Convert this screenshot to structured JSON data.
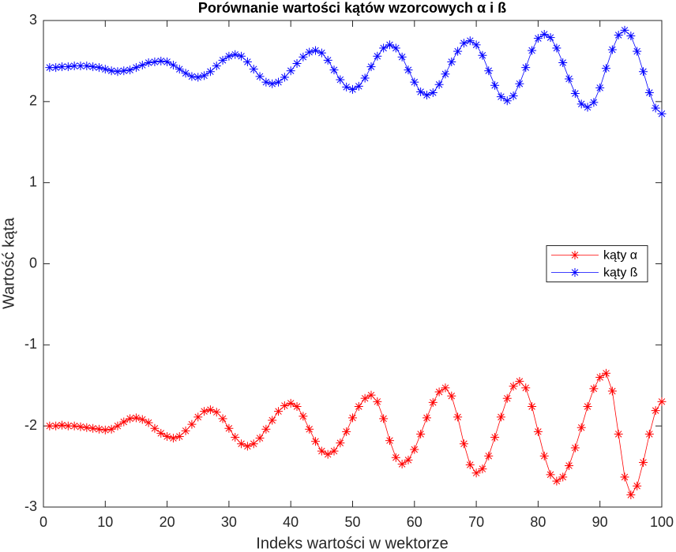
{
  "chart_data": {
    "type": "line",
    "title": "Porównanie wartości kątów wzorcowych α i ß",
    "x_label": "Indeks wartości w wektorze",
    "y_label": "Wartość kąta",
    "x": [
      1,
      2,
      3,
      4,
      5,
      6,
      7,
      8,
      9,
      10,
      11,
      12,
      13,
      14,
      15,
      16,
      17,
      18,
      19,
      20,
      21,
      22,
      23,
      24,
      25,
      26,
      27,
      28,
      29,
      30,
      31,
      32,
      33,
      34,
      35,
      36,
      37,
      38,
      39,
      40,
      41,
      42,
      43,
      44,
      45,
      46,
      47,
      48,
      49,
      50,
      51,
      52,
      53,
      54,
      55,
      56,
      57,
      58,
      59,
      60,
      61,
      62,
      63,
      64,
      65,
      66,
      67,
      68,
      69,
      70,
      71,
      72,
      73,
      74,
      75,
      76,
      77,
      78,
      79,
      80,
      81,
      82,
      83,
      84,
      85,
      86,
      87,
      88,
      89,
      90,
      91,
      92,
      93,
      94,
      95,
      96,
      97,
      98,
      99,
      100
    ],
    "series": [
      {
        "name": "kąty α",
        "color": "#ff0000",
        "values": [
          -2.0,
          -2.0,
          -1.99,
          -2.0,
          -2.0,
          -2.01,
          -2.02,
          -2.03,
          -2.04,
          -2.05,
          -2.04,
          -2.0,
          -1.95,
          -1.91,
          -1.9,
          -1.92,
          -1.96,
          -2.03,
          -2.09,
          -2.13,
          -2.15,
          -2.13,
          -2.06,
          -1.98,
          -1.89,
          -1.82,
          -1.8,
          -1.83,
          -1.91,
          -2.03,
          -2.14,
          -2.22,
          -2.25,
          -2.22,
          -2.15,
          -2.04,
          -1.93,
          -1.82,
          -1.75,
          -1.72,
          -1.76,
          -1.88,
          -2.04,
          -2.19,
          -2.31,
          -2.35,
          -2.31,
          -2.21,
          -2.07,
          -1.9,
          -1.76,
          -1.66,
          -1.62,
          -1.7,
          -1.91,
          -2.18,
          -2.39,
          -2.47,
          -2.42,
          -2.29,
          -2.1,
          -1.9,
          -1.71,
          -1.58,
          -1.53,
          -1.63,
          -1.89,
          -2.22,
          -2.48,
          -2.58,
          -2.53,
          -2.37,
          -2.14,
          -1.89,
          -1.66,
          -1.51,
          -1.45,
          -1.53,
          -1.76,
          -2.07,
          -2.37,
          -2.6,
          -2.68,
          -2.63,
          -2.49,
          -2.27,
          -2.02,
          -1.76,
          -1.54,
          -1.4,
          -1.35,
          -1.57,
          -2.1,
          -2.63,
          -2.85,
          -2.74,
          -2.45,
          -2.1,
          -1.81,
          -1.7
        ]
      },
      {
        "name": "kąty ß",
        "color": "#0000ff",
        "values": [
          2.42,
          2.42,
          2.43,
          2.43,
          2.44,
          2.44,
          2.44,
          2.43,
          2.42,
          2.4,
          2.38,
          2.37,
          2.38,
          2.39,
          2.42,
          2.45,
          2.48,
          2.49,
          2.5,
          2.49,
          2.45,
          2.4,
          2.35,
          2.31,
          2.3,
          2.32,
          2.37,
          2.44,
          2.51,
          2.56,
          2.58,
          2.56,
          2.49,
          2.4,
          2.31,
          2.24,
          2.22,
          2.24,
          2.3,
          2.38,
          2.47,
          2.55,
          2.61,
          2.63,
          2.6,
          2.51,
          2.39,
          2.27,
          2.18,
          2.15,
          2.19,
          2.29,
          2.43,
          2.56,
          2.66,
          2.7,
          2.66,
          2.55,
          2.39,
          2.24,
          2.12,
          2.08,
          2.11,
          2.21,
          2.34,
          2.49,
          2.62,
          2.72,
          2.75,
          2.7,
          2.57,
          2.38,
          2.2,
          2.06,
          2.01,
          2.07,
          2.22,
          2.42,
          2.63,
          2.78,
          2.83,
          2.79,
          2.66,
          2.48,
          2.28,
          2.1,
          1.97,
          1.93,
          1.99,
          2.17,
          2.41,
          2.64,
          2.82,
          2.88,
          2.81,
          2.62,
          2.37,
          2.11,
          1.92,
          1.85
        ]
      }
    ],
    "xlim": [
      0,
      100
    ],
    "xticks": [
      0,
      10,
      20,
      30,
      40,
      50,
      60,
      70,
      80,
      90,
      100
    ],
    "ylim": [
      -3,
      3
    ],
    "yticks": [
      -3,
      -2,
      -1,
      0,
      1,
      2,
      3
    ],
    "legend": "east",
    "marker": "asterisk",
    "grid": false
  }
}
